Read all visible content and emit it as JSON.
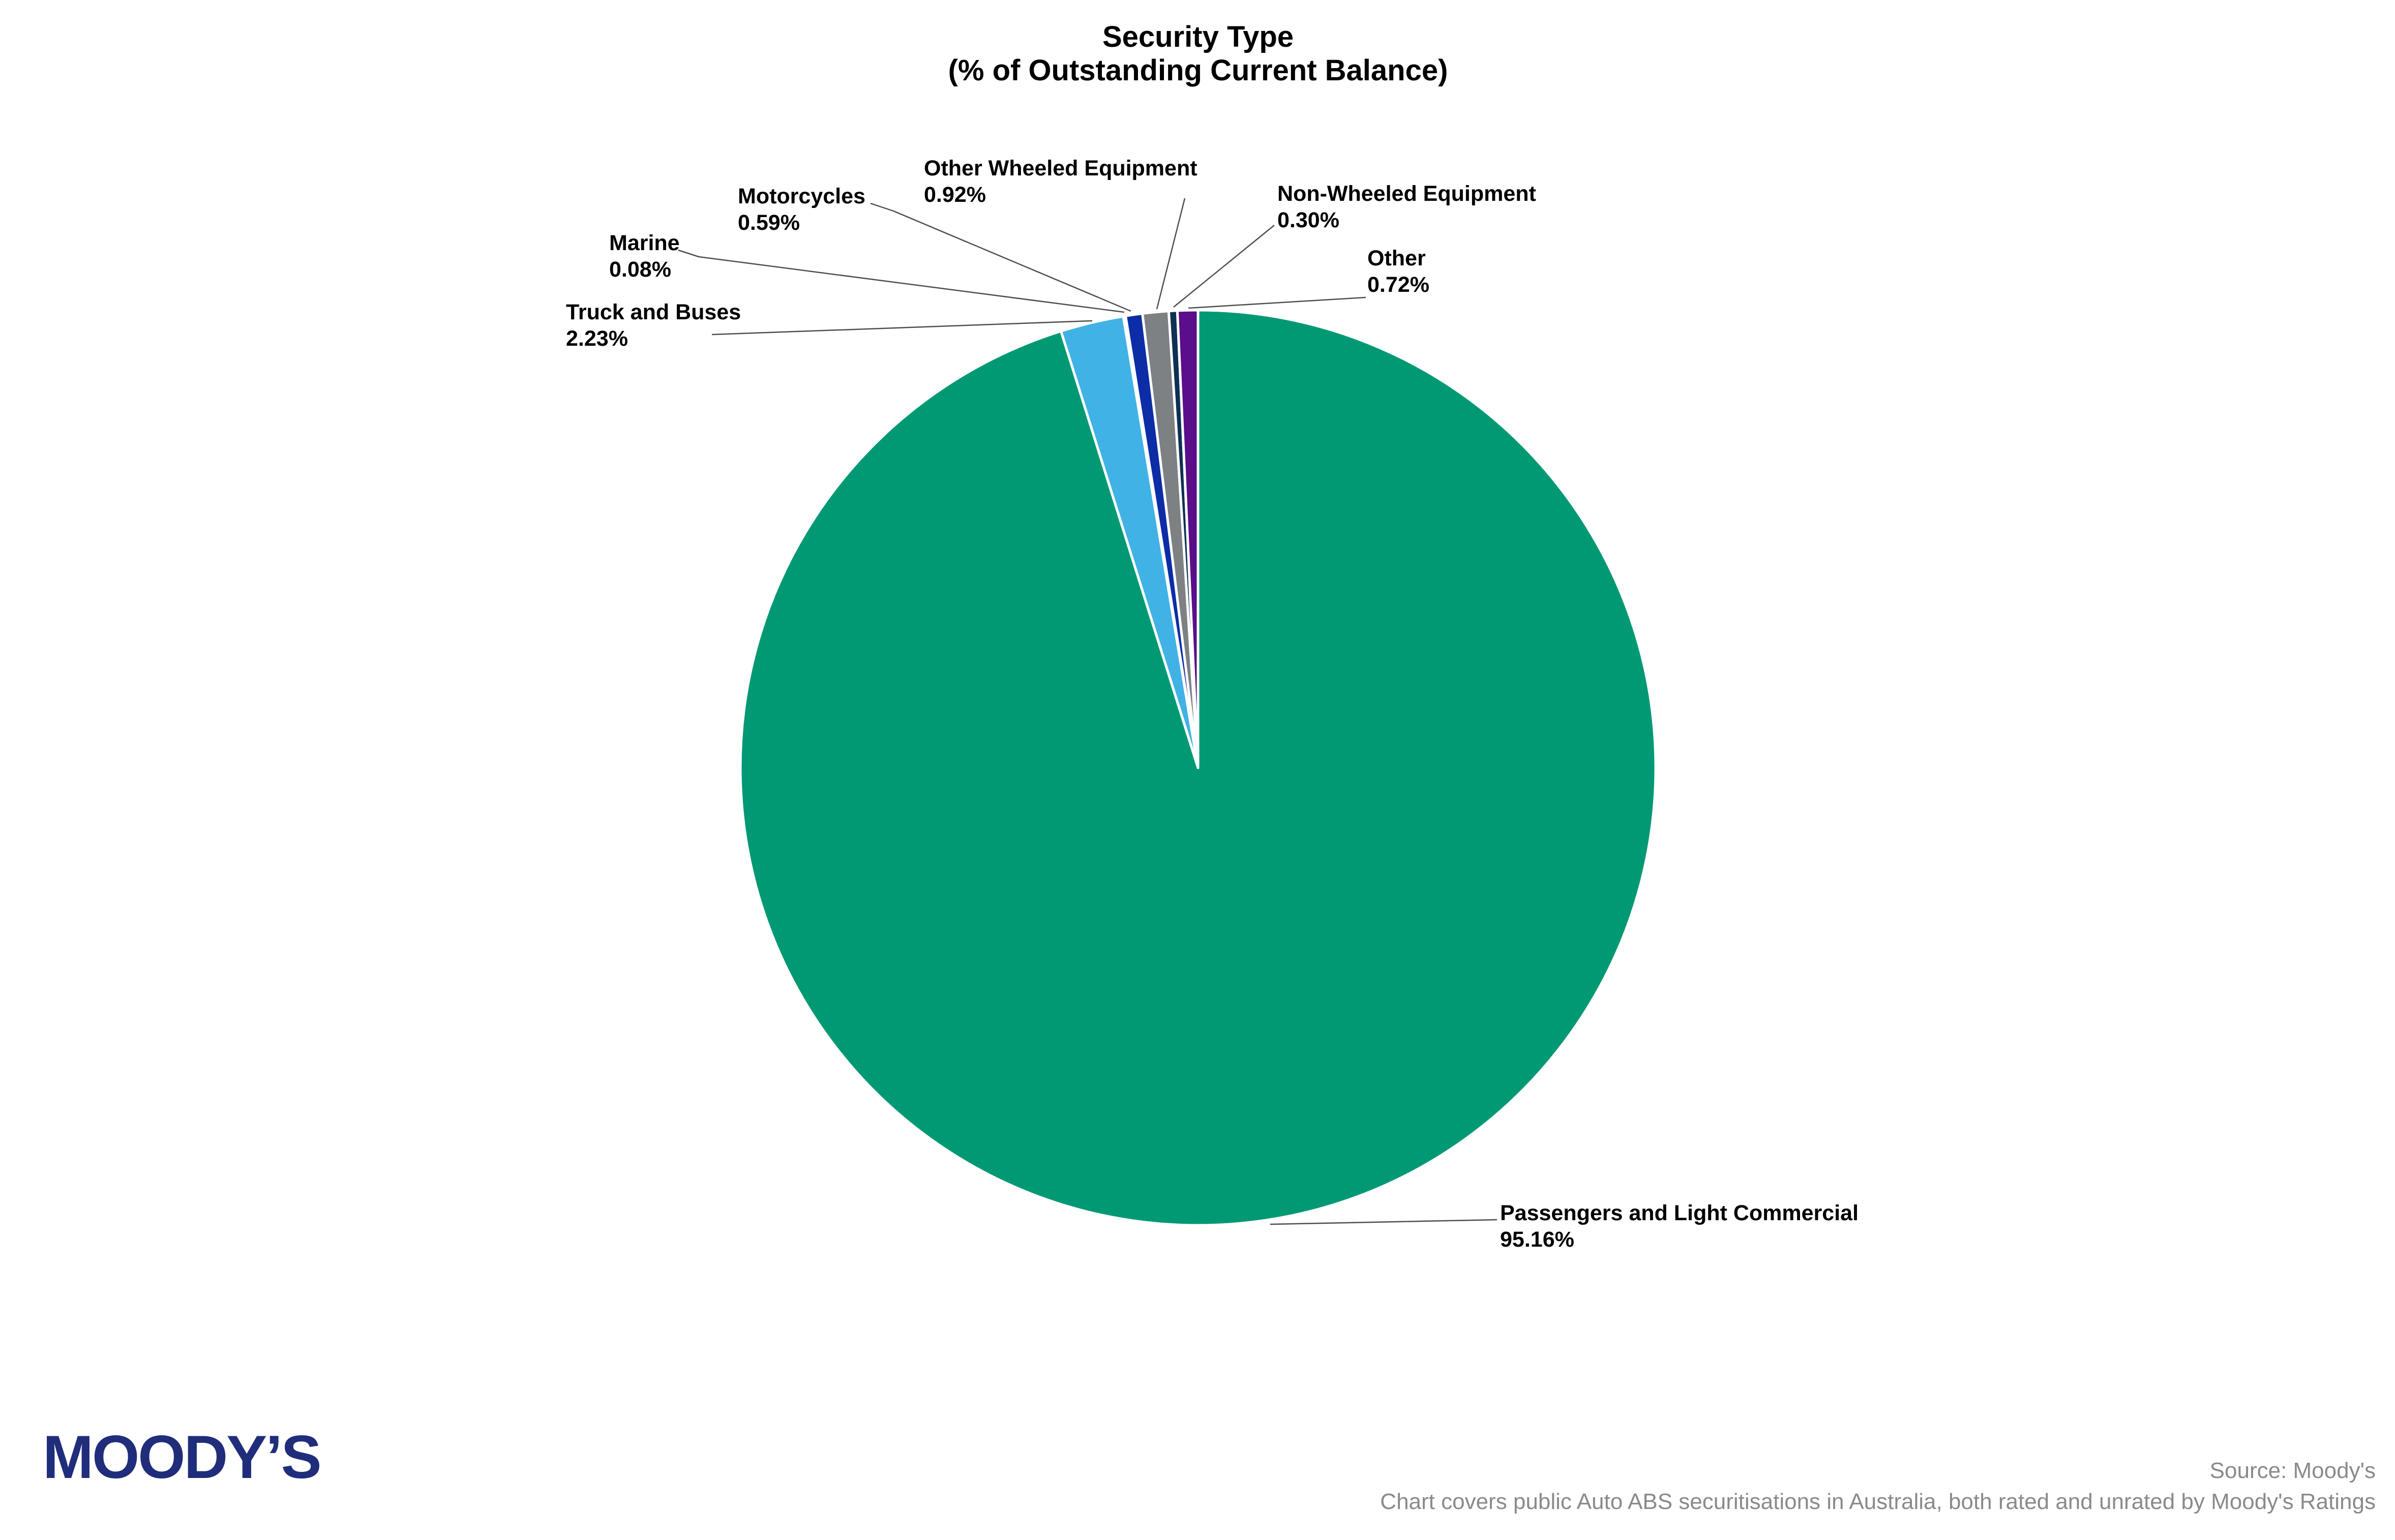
{
  "title": {
    "line1": "Security Type",
    "line2": "(% of Outstanding Current Balance)"
  },
  "chart_data": {
    "type": "pie",
    "title": "Security Type",
    "subtitle": "(% of Outstanding Current Balance)",
    "unit": "percent_of_outstanding_current_balance",
    "start_angle_deg": 0,
    "direction": "clockwise",
    "legend_position": "callout-labels",
    "slices": [
      {
        "label": "Passengers and Light Commercial",
        "value": 95.16,
        "display": "95.16%",
        "color": "#009973"
      },
      {
        "label": "Truck and Buses",
        "value": 2.23,
        "display": "2.23%",
        "color": "#41B2E5"
      },
      {
        "label": "Marine",
        "value": 0.08,
        "display": "0.08%",
        "color": "#2B6CB8"
      },
      {
        "label": "Motorcycles",
        "value": 0.59,
        "display": "0.59%",
        "color": "#0C2DA6"
      },
      {
        "label": "Other Wheeled Equipment",
        "value": 0.92,
        "display": "0.92%",
        "color": "#7E8183"
      },
      {
        "label": "Non-Wheeled Equipment",
        "value": 0.3,
        "display": "0.30%",
        "color": "#0E3055"
      },
      {
        "label": "Other",
        "value": 0.72,
        "display": "0.72%",
        "color": "#5A0E8A"
      }
    ]
  },
  "footer": {
    "logo_text": "MOODY’S",
    "logo_color": "#1F2D7B",
    "source_line1": "Source: Moody's",
    "source_line2": "Chart covers public Auto ABS securitisations in Australia, both rated and unrated by Moody's Ratings"
  }
}
